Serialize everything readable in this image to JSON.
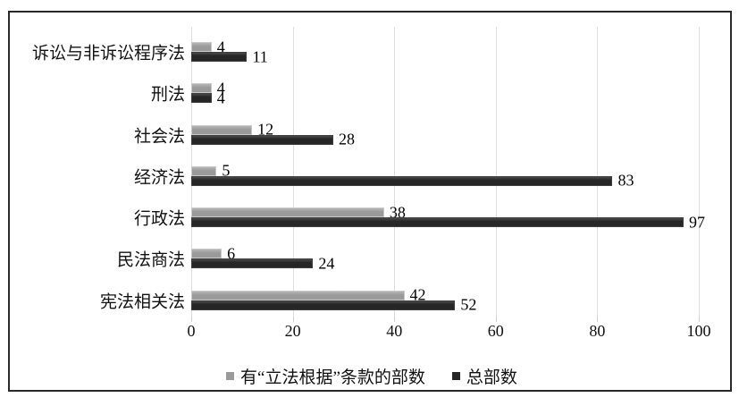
{
  "figure": {
    "background": "#ffffff",
    "border_color": "#2a2a2a"
  },
  "chart_data": {
    "type": "bar",
    "orientation": "horizontal",
    "title": "",
    "xlabel": "",
    "ylabel": "",
    "categories_top_to_bottom": [
      "诉讼与非诉讼程序法",
      "刑法",
      "社会法",
      "经济法",
      "行政法",
      "民法商法",
      "宪法相关法"
    ],
    "series": [
      {
        "key": "with-basis-clause",
        "name": "有“立法根据”条款的部数",
        "color": "#9a9a9a",
        "values": [
          4,
          4,
          12,
          5,
          38,
          6,
          42
        ]
      },
      {
        "key": "total-count",
        "name": "总部数",
        "color": "#262626",
        "values": [
          11,
          4,
          28,
          83,
          97,
          24,
          52
        ]
      }
    ],
    "xlim": [
      0,
      100
    ],
    "xticks": [
      0,
      20,
      40,
      60,
      80,
      100
    ],
    "grid": true,
    "gridline_color": "#dedede",
    "value_labels": true,
    "legend_position": "bottom"
  }
}
